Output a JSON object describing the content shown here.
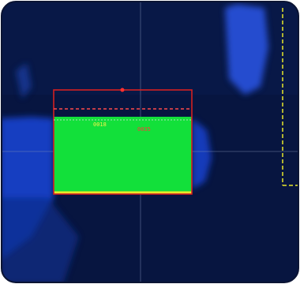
{
  "labels": {
    "left": "0018",
    "center": "0035"
  }
}
